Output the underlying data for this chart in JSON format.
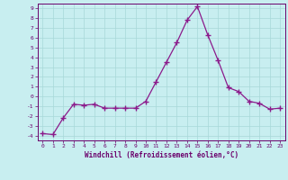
{
  "x": [
    0,
    1,
    2,
    3,
    4,
    5,
    6,
    7,
    8,
    9,
    10,
    11,
    12,
    13,
    14,
    15,
    16,
    17,
    18,
    19,
    20,
    21,
    22,
    23
  ],
  "y": [
    -3.8,
    -3.9,
    -2.2,
    -0.8,
    -0.9,
    -0.8,
    -1.2,
    -1.2,
    -1.2,
    -1.2,
    -0.5,
    1.5,
    3.5,
    5.5,
    7.8,
    9.2,
    6.3,
    3.7,
    0.9,
    0.5,
    -0.5,
    -0.7,
    -1.3,
    -1.2
  ],
  "line_color": "#8b1a8b",
  "marker": "+",
  "bg_color": "#c8eef0",
  "grid_color": "#a8d8d8",
  "xlabel": "Windchill (Refroidissement éolien,°C)",
  "xlabel_color": "#6b006b",
  "tick_color": "#6b006b",
  "spine_color": "#6b006b",
  "xlim": [
    -0.5,
    23.5
  ],
  "ylim": [
    -4.5,
    9.5
  ],
  "yticks": [
    -4,
    -3,
    -2,
    -1,
    0,
    1,
    2,
    3,
    4,
    5,
    6,
    7,
    8,
    9
  ],
  "xticks": [
    0,
    1,
    2,
    3,
    4,
    5,
    6,
    7,
    8,
    9,
    10,
    11,
    12,
    13,
    14,
    15,
    16,
    17,
    18,
    19,
    20,
    21,
    22,
    23
  ]
}
